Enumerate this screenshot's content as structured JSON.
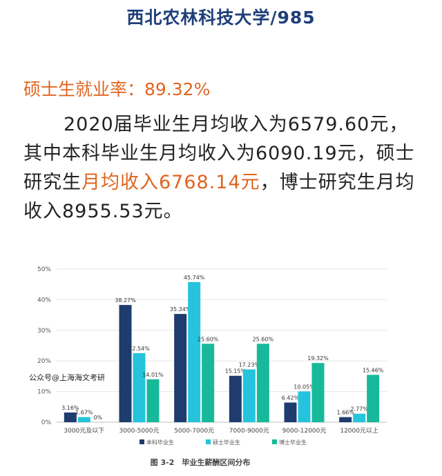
{
  "header": {
    "title": "西北农林科技大学/985"
  },
  "stats": {
    "rate_label": "硕士生就业率：89.32%",
    "para_part1": "2020届毕业生月均收入为6579.60元，其中本科毕业生月均收入为6090.19元，硕士研究生",
    "para_highlight": "月均收入6768.14元",
    "para_part2": "，博士研究生月均收入8955.53元。"
  },
  "watermark": "公众号@上海海文考研",
  "colors": {
    "title": "#1f3f79",
    "highlight": "#e0641f",
    "undergrad": "#1e3c6e",
    "master": "#25c4dc",
    "phd": "#17b99a"
  },
  "chart_data": {
    "type": "bar",
    "title": "",
    "caption": "图 3-2　毕业生薪酬区间分布",
    "categories": [
      "3000元及以下",
      "3000-5000元",
      "5000-7000元",
      "7000-9000元",
      "9000-12000元",
      "12000元以上"
    ],
    "series": [
      {
        "name": "本科毕业生",
        "values": [
          3.16,
          38.27,
          35.34,
          15.15,
          6.42,
          1.66
        ],
        "labels": [
          "3.16%",
          "38.27%",
          "35.34%",
          "15.15%",
          "6.42%",
          "1.66%"
        ]
      },
      {
        "name": "硕士毕业生",
        "values": [
          1.67,
          22.54,
          45.74,
          17.23,
          10.05,
          2.77
        ],
        "labels": [
          "1.67%",
          "22.54%",
          "45.74%",
          "17.23%",
          "10.05%",
          "2.77%"
        ]
      },
      {
        "name": "博士毕业生",
        "values": [
          0,
          14.01,
          25.6,
          25.6,
          19.32,
          15.46
        ],
        "labels": [
          "0%",
          "14.01%",
          "25.60%",
          "25.60%",
          "19.32%",
          "15.46%"
        ]
      }
    ],
    "ylim": [
      0,
      50
    ],
    "yticks": [
      "0%",
      "10%",
      "20%",
      "30%",
      "40%",
      "50%"
    ],
    "grid": true,
    "legend": "bottom"
  }
}
